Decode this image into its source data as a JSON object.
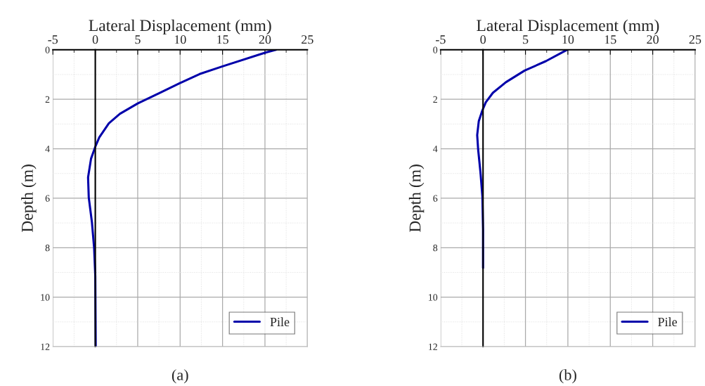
{
  "chart_data": [
    {
      "type": "line",
      "xlabel": "Lateral Displacement (mm)",
      "ylabel": "Depth (m)",
      "annotations": [
        "(a)"
      ],
      "xlim": [
        -5,
        25
      ],
      "xticks": [
        -5,
        0,
        5,
        10,
        15,
        20,
        25
      ],
      "ylim": [
        12,
        0
      ],
      "yticks": [
        0,
        2,
        4,
        6,
        8,
        10,
        12
      ],
      "grid": true,
      "legend": "bottom right",
      "line_style": "solid",
      "series": [
        {
          "name": "Pile",
          "color": "#0000aa",
          "values": [
            0,
            0.12,
            0.67,
            0.98,
            1.36,
            1.74,
            2.17,
            2.59,
            2.97,
            3.54,
            3.92,
            4.4,
            5.16,
            5.97,
            6.96,
            8.0,
            9.15,
            12
          ],
          "x": [
            21.3,
            20.0,
            15.0,
            12.3,
            9.9,
            7.6,
            5.0,
            2.9,
            1.6,
            0.47,
            0,
            -0.5,
            -0.85,
            -0.77,
            -0.4,
            -0.14,
            0,
            0.05
          ]
        }
      ]
    },
    {
      "type": "line",
      "xlabel": "Lateral Displacement (mm)",
      "ylabel": "Depth (m)",
      "annotations": [
        "(b)"
      ],
      "xlim": [
        -5,
        25
      ],
      "xticks": [
        -5,
        0,
        5,
        10,
        15,
        20,
        25
      ],
      "ylim": [
        12,
        0
      ],
      "yticks": [
        0,
        2,
        4,
        6,
        8,
        10,
        12
      ],
      "grid": true,
      "legend": "bottom right",
      "line_style": "solid",
      "series": [
        {
          "name": "Pile",
          "color": "#0000aa",
          "values": [
            0,
            0.46,
            0.84,
            1.31,
            1.74,
            2.12,
            2.45,
            2.88,
            3.45,
            4.02,
            4.97,
            5.92,
            7.25,
            8.82
          ],
          "x": [
            9.9,
            7.4,
            4.9,
            2.7,
            1.16,
            0.33,
            -0.08,
            -0.5,
            -0.69,
            -0.58,
            -0.3,
            -0.08,
            0,
            0
          ]
        }
      ]
    }
  ]
}
